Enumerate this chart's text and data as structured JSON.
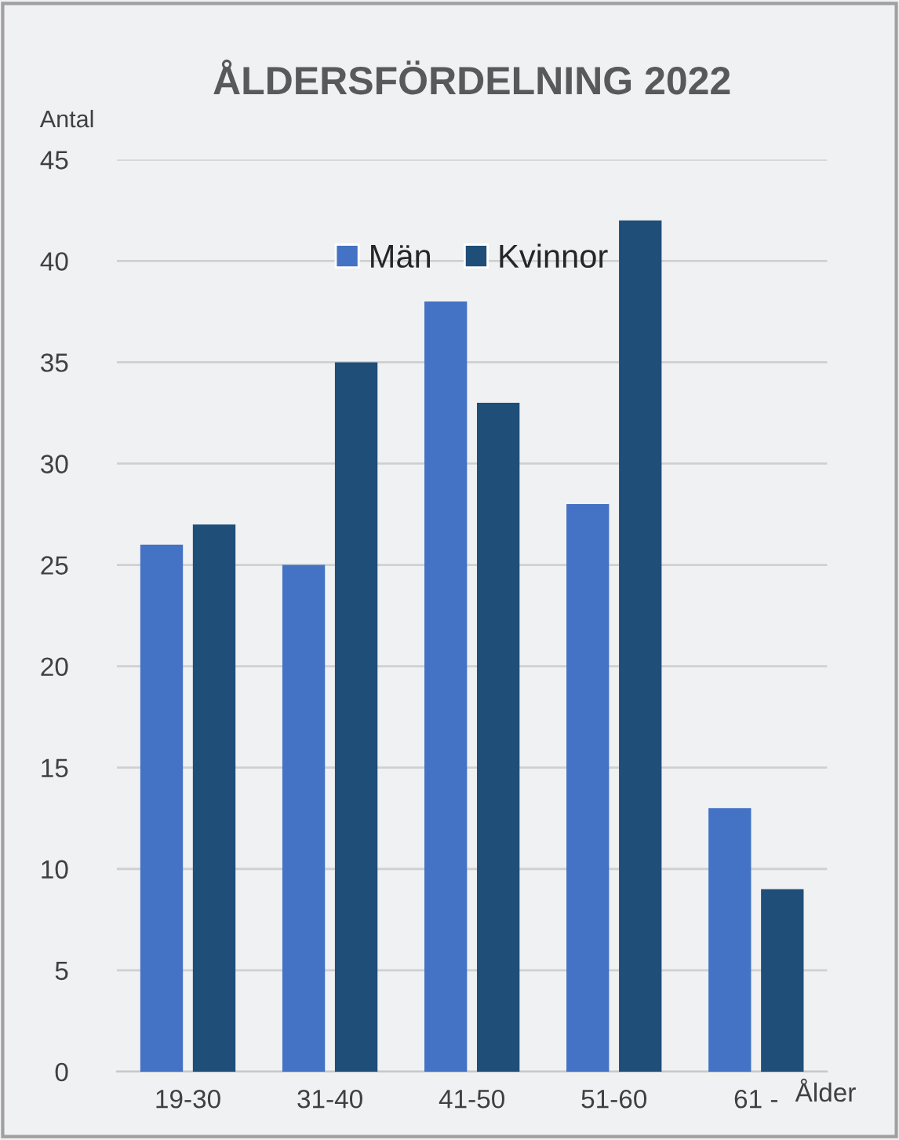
{
  "chart_data": {
    "type": "bar",
    "title": "ÅLDERSFÖRDELNING 2022",
    "ylabel": "Antal",
    "xlabel": "Ålder",
    "categories": [
      "19-30",
      "31-40",
      "41-50",
      "51-60",
      "61 -"
    ],
    "series": [
      {
        "name": "Män",
        "color": "#4472c4",
        "values": [
          26,
          25,
          38,
          28,
          13
        ]
      },
      {
        "name": "Kvinnor",
        "color": "#1f4e79",
        "values": [
          27,
          35,
          33,
          42,
          9
        ]
      }
    ],
    "ylim": [
      0,
      45
    ],
    "yticks": [
      0,
      5,
      10,
      15,
      20,
      25,
      30,
      35,
      40,
      45
    ],
    "grid": "y",
    "legend": "top"
  }
}
